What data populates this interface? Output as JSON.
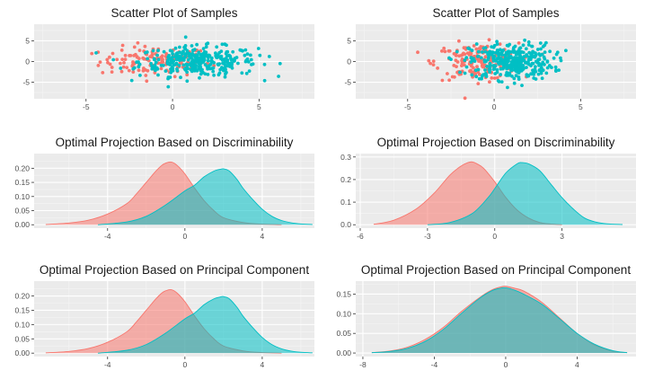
{
  "chart_data": [
    {
      "type": "scatter",
      "title": "Scatter Plot of Samples",
      "xlim": [
        -8,
        8.2
      ],
      "ylim": [
        -9,
        9
      ],
      "xticks": [
        -5,
        0,
        5
      ],
      "yticks": [
        -5,
        0,
        5
      ],
      "grid": true,
      "legend": "none",
      "series": [
        {
          "color": "#F8766D",
          "x_center": -1.0,
          "x_sd": 1.6,
          "y_sd": 1.8,
          "count": 130
        },
        {
          "color": "#00BFC4",
          "x_center": 1.5,
          "x_sd": 1.7,
          "y_sd": 1.8,
          "count": 330
        }
      ]
    },
    {
      "type": "scatter",
      "title": "Scatter Plot of Samples",
      "xlim": [
        -8,
        8.2
      ],
      "ylim": [
        -9,
        9
      ],
      "xticks": [
        -5,
        0,
        5
      ],
      "yticks": [
        -5,
        0,
        5
      ],
      "grid": true,
      "legend": "none",
      "series": [
        {
          "color": "#F8766D",
          "x_center": -1.0,
          "x_sd": 1.2,
          "y_sd": 2.2,
          "count": 170
        },
        {
          "color": "#00BFC4",
          "x_center": 1.0,
          "x_sd": 1.2,
          "y_sd": 2.2,
          "count": 360
        }
      ]
    },
    {
      "type": "area",
      "title": "Optimal Projection Based on Discriminability",
      "xlim": [
        -7.8,
        6.7
      ],
      "ylim": [
        -0.012,
        0.252
      ],
      "xticks": [
        -4,
        0,
        4
      ],
      "yticks": [
        0.0,
        0.05,
        0.1,
        0.15,
        0.2
      ],
      "ytick_labels": [
        "0.00",
        "0.05",
        "0.10",
        "0.15",
        "0.20"
      ],
      "grid": true,
      "legend": "none",
      "series": [
        {
          "color": "#F8766D",
          "x": [
            -7.2,
            -6,
            -5,
            -4,
            -3,
            -2.5,
            -2,
            -1.5,
            -1.2,
            -1,
            -0.7,
            -0.4,
            0,
            0.5,
            1,
            1.5,
            2,
            3,
            4,
            5
          ],
          "y": [
            0.001,
            0.006,
            0.016,
            0.038,
            0.075,
            0.11,
            0.15,
            0.19,
            0.21,
            0.218,
            0.222,
            0.21,
            0.18,
            0.13,
            0.085,
            0.05,
            0.025,
            0.008,
            0.002,
            0.0
          ]
        },
        {
          "color": "#00BFC4",
          "x": [
            -4.5,
            -3,
            -2,
            -1,
            0,
            0.5,
            1,
            1.5,
            1.8,
            2,
            2.3,
            2.7,
            3,
            3.5,
            4,
            4.5,
            5,
            5.5,
            6,
            6.6
          ],
          "y": [
            0.0,
            0.01,
            0.03,
            0.07,
            0.12,
            0.14,
            0.17,
            0.19,
            0.196,
            0.198,
            0.19,
            0.16,
            0.13,
            0.09,
            0.055,
            0.03,
            0.015,
            0.007,
            0.003,
            0.001
          ]
        }
      ]
    },
    {
      "type": "area",
      "title": "Optimal Projection Based on Discriminability",
      "xlim": [
        -6.2,
        6.3
      ],
      "ylim": [
        -0.015,
        0.315
      ],
      "xticks": [
        -6,
        -3,
        0,
        3
      ],
      "yticks": [
        0.0,
        0.1,
        0.2,
        0.3
      ],
      "ytick_labels": [
        "0.0",
        "0.1",
        "0.2",
        "0.3"
      ],
      "grid": true,
      "legend": "none",
      "series": [
        {
          "color": "#F8766D",
          "x": [
            -5.4,
            -4.5,
            -3.5,
            -2.7,
            -2,
            -1.5,
            -1.2,
            -1,
            -0.8,
            -0.5,
            0,
            0.5,
            1,
            1.5,
            2,
            2.5,
            3
          ],
          "y": [
            0.002,
            0.02,
            0.07,
            0.14,
            0.22,
            0.26,
            0.275,
            0.278,
            0.27,
            0.25,
            0.19,
            0.12,
            0.065,
            0.03,
            0.01,
            0.003,
            0.0
          ]
        },
        {
          "color": "#00BFC4",
          "x": [
            -3,
            -2,
            -1,
            -0.3,
            0,
            0.5,
            1,
            1.2,
            1.5,
            2,
            2.5,
            3,
            3.5,
            4,
            4.5,
            5,
            5.7
          ],
          "y": [
            0.0,
            0.01,
            0.05,
            0.12,
            0.16,
            0.23,
            0.27,
            0.275,
            0.27,
            0.24,
            0.18,
            0.12,
            0.07,
            0.03,
            0.012,
            0.004,
            0.001
          ]
        }
      ]
    },
    {
      "type": "area",
      "title": "Optimal Projection Based on Principal Component",
      "xlim": [
        -7.8,
        6.7
      ],
      "ylim": [
        -0.012,
        0.252
      ],
      "xticks": [
        -4,
        0,
        4
      ],
      "yticks": [
        0.0,
        0.05,
        0.1,
        0.15,
        0.2
      ],
      "ytick_labels": [
        "0.00",
        "0.05",
        "0.10",
        "0.15",
        "0.20"
      ],
      "grid": true,
      "legend": "none",
      "series": [
        {
          "color": "#F8766D",
          "x": [
            -7.2,
            -6,
            -5,
            -4,
            -3,
            -2.5,
            -2,
            -1.5,
            -1.2,
            -1,
            -0.7,
            -0.4,
            0,
            0.5,
            1,
            1.5,
            2,
            3,
            4,
            5
          ],
          "y": [
            0.001,
            0.006,
            0.016,
            0.038,
            0.075,
            0.11,
            0.15,
            0.19,
            0.21,
            0.218,
            0.222,
            0.21,
            0.18,
            0.13,
            0.085,
            0.05,
            0.025,
            0.008,
            0.002,
            0.0
          ]
        },
        {
          "color": "#00BFC4",
          "x": [
            -4.5,
            -3,
            -2,
            -1,
            0,
            0.5,
            1,
            1.5,
            1.8,
            2,
            2.3,
            2.7,
            3,
            3.5,
            4,
            4.5,
            5,
            5.5,
            6,
            6.6
          ],
          "y": [
            0.0,
            0.01,
            0.03,
            0.07,
            0.12,
            0.14,
            0.17,
            0.19,
            0.196,
            0.198,
            0.19,
            0.16,
            0.13,
            0.09,
            0.055,
            0.03,
            0.015,
            0.007,
            0.003,
            0.001
          ]
        }
      ]
    },
    {
      "type": "area",
      "title": "Optimal Projection Based on Principal Component",
      "xlim": [
        -8.4,
        7.3
      ],
      "ylim": [
        -0.009,
        0.183
      ],
      "xticks": [
        -8,
        -4,
        0,
        4
      ],
      "yticks": [
        0.0,
        0.05,
        0.1,
        0.15
      ],
      "ytick_labels": [
        "0.00",
        "0.05",
        "0.10",
        "0.15"
      ],
      "grid": true,
      "legend": "none",
      "series": [
        {
          "color": "#F8766D",
          "x": [
            -7.5,
            -6.5,
            -5.5,
            -4.5,
            -3.5,
            -2.5,
            -1.5,
            -0.8,
            -0.3,
            0,
            0.5,
            1,
            2,
            3,
            4,
            5,
            6,
            6.8
          ],
          "y": [
            0.001,
            0.005,
            0.015,
            0.035,
            0.065,
            0.105,
            0.14,
            0.16,
            0.168,
            0.17,
            0.165,
            0.158,
            0.13,
            0.09,
            0.05,
            0.02,
            0.005,
            0.001
          ]
        },
        {
          "color": "#00BFC4",
          "x": [
            -7.5,
            -6.5,
            -5.5,
            -4.5,
            -3.5,
            -2.5,
            -1.5,
            -0.8,
            -0.3,
            0,
            0.5,
            1,
            2,
            3,
            4,
            5,
            6,
            6.8
          ],
          "y": [
            0.001,
            0.004,
            0.012,
            0.03,
            0.06,
            0.1,
            0.138,
            0.158,
            0.165,
            0.166,
            0.16,
            0.15,
            0.125,
            0.088,
            0.05,
            0.022,
            0.006,
            0.001
          ]
        }
      ]
    }
  ]
}
